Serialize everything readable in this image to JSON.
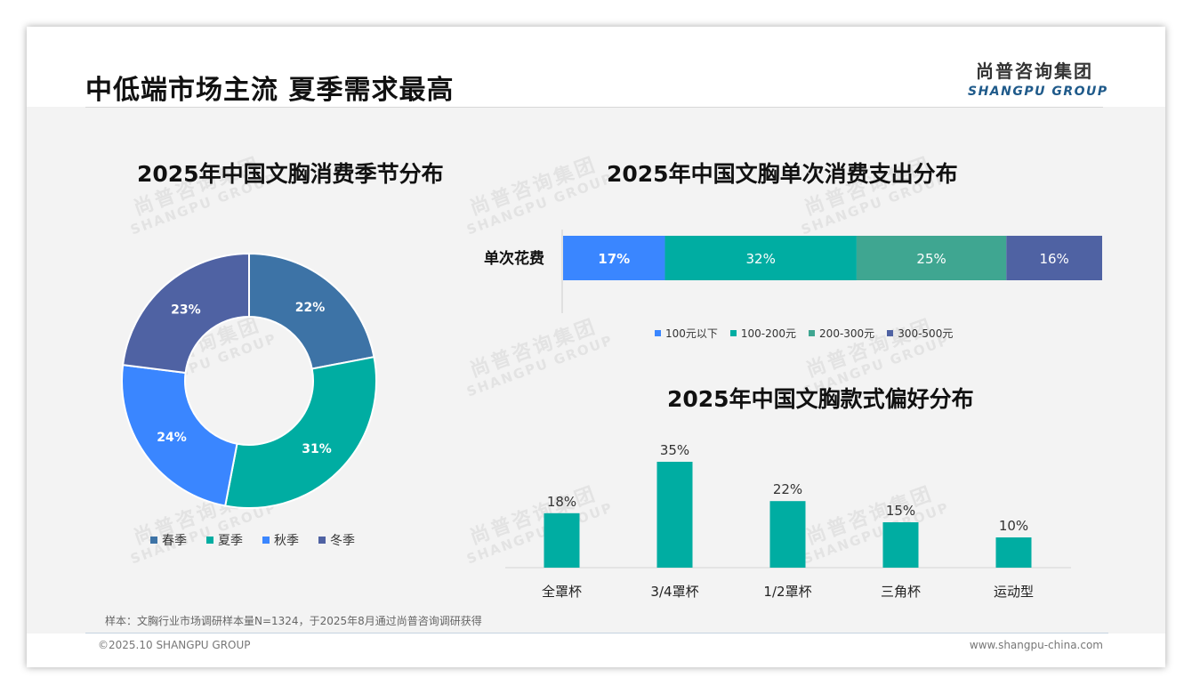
{
  "page": {
    "title": "中低端市场主流 夏季需求最高",
    "logo_cn": "尚普咨询集团",
    "logo_en": "SHANGPU GROUP",
    "note": "样本：文胸行业市场调研样本量N=1324，于2025年8月通过尚普咨询调研获得",
    "copyright": "©2025.10 SHANGPU GROUP",
    "website": "www.shangpu-china.com"
  },
  "watermark": {
    "cn": "尚普咨询集团",
    "en": "SHANGPU GROUP"
  },
  "colors": {
    "spring": "#3d73a6",
    "summer": "#00ada2",
    "autumn": "#3a86ff",
    "winter": "#4f62a3",
    "under100": "#3a86ff",
    "r100_200": "#00ada2",
    "r200_300": "#3fa691",
    "r300_500": "#4f62a3",
    "bar": "#00ada2"
  },
  "chart_data": [
    {
      "type": "pie",
      "subtype": "donut",
      "title": "2025年中国文胸消费季节分布",
      "categories": [
        "春季",
        "夏季",
        "秋季",
        "冬季"
      ],
      "values": [
        22,
        31,
        24,
        23
      ],
      "labels": [
        "22%",
        "31%",
        "24%",
        "23%"
      ],
      "legend": "bottom"
    },
    {
      "type": "bar",
      "subtype": "stacked-horizontal-100",
      "title": "2025年中国文胸单次消费支出分布",
      "categories": [
        "单次花费"
      ],
      "series": [
        {
          "name": "100元以下",
          "values": [
            17
          ],
          "label": "17%"
        },
        {
          "name": "100-200元",
          "values": [
            32
          ],
          "label": "32%"
        },
        {
          "name": "200-300元",
          "values": [
            25
          ],
          "label": "25%"
        },
        {
          "name": "300-500元",
          "values": [
            16
          ],
          "label": "16%"
        }
      ],
      "legend": "bottom"
    },
    {
      "type": "bar",
      "title": "2025年中国文胸款式偏好分布",
      "categories": [
        "全罩杯",
        "3/4罩杯",
        "1/2罩杯",
        "三角杯",
        "运动型"
      ],
      "values": [
        18,
        35,
        22,
        15,
        10
      ],
      "labels": [
        "18%",
        "35%",
        "22%",
        "15%",
        "10%"
      ]
    }
  ]
}
